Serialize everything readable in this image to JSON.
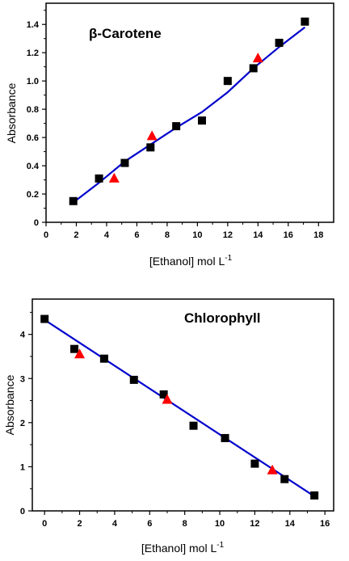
{
  "chart_data": [
    {
      "type": "scatter",
      "title": "β-Carotene",
      "xlabel": "[Ethanol] mol L",
      "xlabel_sup": "-1",
      "ylabel": "Absorbance",
      "xlim": [
        0,
        19
      ],
      "ylim": [
        0,
        1.55
      ],
      "xticks": [
        "0",
        "2",
        "4",
        "6",
        "8",
        "10",
        "12",
        "14",
        "16",
        "18"
      ],
      "yticks": [
        "0",
        "0.2",
        "0.4",
        "0.6",
        "0.8",
        "1.0",
        "1.2",
        "1.4"
      ],
      "series": [
        {
          "marker": "square",
          "color": "#000000",
          "points": [
            [
              1.8,
              0.15
            ],
            [
              3.5,
              0.31
            ],
            [
              5.2,
              0.42
            ],
            [
              6.9,
              0.53
            ],
            [
              8.6,
              0.68
            ],
            [
              10.3,
              0.72
            ],
            [
              12.0,
              1.0
            ],
            [
              13.7,
              1.09
            ],
            [
              15.4,
              1.27
            ],
            [
              17.1,
              1.42
            ]
          ]
        },
        {
          "marker": "triangle",
          "color": "#ff0000",
          "points": [
            [
              4.5,
              0.31
            ],
            [
              7.0,
              0.61
            ],
            [
              14.0,
              1.16
            ]
          ]
        },
        {
          "marker": "line",
          "color": "#0000cc",
          "points": [
            [
              1.8,
              0.14
            ],
            [
              3.5,
              0.28
            ],
            [
              5.2,
              0.43
            ],
            [
              6.9,
              0.55
            ],
            [
              8.6,
              0.67
            ],
            [
              10.3,
              0.78
            ],
            [
              12.0,
              0.92
            ],
            [
              13.7,
              1.09
            ],
            [
              15.4,
              1.24
            ],
            [
              17.1,
              1.38
            ]
          ]
        }
      ]
    },
    {
      "type": "scatter",
      "title": "Chlorophyll",
      "xlabel": "[Ethanol] mol L",
      "xlabel_sup": "-1",
      "ylabel": "Absorbance",
      "xlim": [
        -0.7,
        16.5
      ],
      "ylim": [
        0,
        4.8
      ],
      "xticks": [
        "0",
        "2",
        "4",
        "6",
        "8",
        "10",
        "12",
        "14",
        "16"
      ],
      "yticks": [
        "0",
        "1",
        "2",
        "3",
        "4"
      ],
      "series": [
        {
          "marker": "square",
          "color": "#000000",
          "points": [
            [
              0,
              4.35
            ],
            [
              1.7,
              3.67
            ],
            [
              3.4,
              3.45
            ],
            [
              5.1,
              2.97
            ],
            [
              6.8,
              2.64
            ],
            [
              8.5,
              1.93
            ],
            [
              10.3,
              1.65
            ],
            [
              12.0,
              1.07
            ],
            [
              13.7,
              0.72
            ],
            [
              15.4,
              0.35
            ]
          ]
        },
        {
          "marker": "triangle",
          "color": "#ff0000",
          "points": [
            [
              2.0,
              3.55
            ],
            [
              7.0,
              2.52
            ],
            [
              13.0,
              0.92
            ]
          ]
        },
        {
          "marker": "line",
          "color": "#0000cc",
          "points": [
            [
              0,
              4.33
            ],
            [
              15.4,
              0.33
            ]
          ]
        }
      ]
    }
  ]
}
